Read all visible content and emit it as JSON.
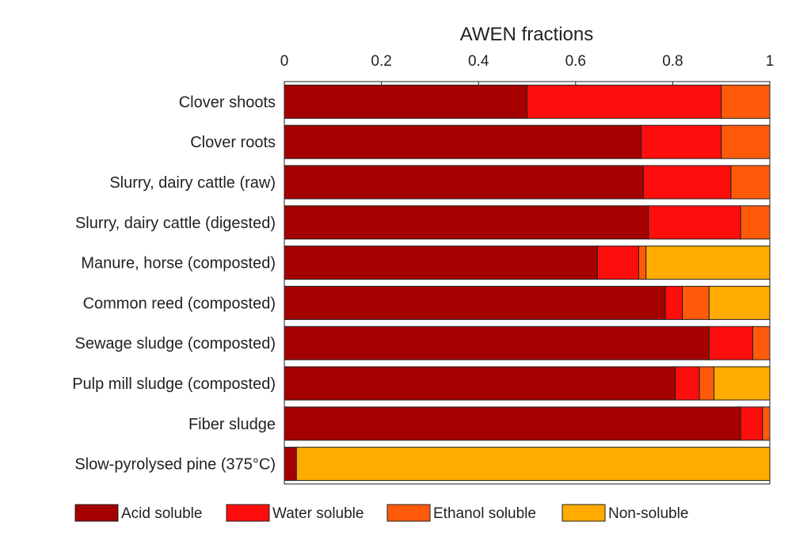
{
  "chart_data": {
    "type": "bar",
    "orientation": "horizontal",
    "stacked": true,
    "xlabel": "AWEN fractions",
    "xlabel_position": "top",
    "xlim": [
      0,
      1
    ],
    "xticks": [
      "0",
      "0.2",
      "0.4",
      "0.6",
      "0.8",
      "1"
    ],
    "xtick_values": [
      0,
      0.2,
      0.4,
      0.6,
      0.8,
      1
    ],
    "grid": false,
    "legend_position": "bottom",
    "categories": [
      "Clover shoots",
      "Clover roots",
      "Slurry, dairy cattle (raw)",
      "Slurry, dairy cattle (digested)",
      "Manure, horse (composted)",
      "Common reed (composted)",
      "Sewage sludge (composted)",
      "Pulp mill sludge (composted)",
      "Fiber sludge",
      "Slow-pyrolysed pine (375°C)"
    ],
    "series": [
      {
        "name": "Acid soluble",
        "color": "#a50000",
        "values": [
          0.5,
          0.735,
          0.74,
          0.75,
          0.645,
          0.785,
          0.875,
          0.805,
          0.94,
          0.025
        ]
      },
      {
        "name": "Water soluble",
        "color": "#ff0d0d",
        "values": [
          0.4,
          0.165,
          0.18,
          0.19,
          0.085,
          0.035,
          0.09,
          0.05,
          0.045,
          0.0
        ]
      },
      {
        "name": "Ethanol soluble",
        "color": "#ff5a0a",
        "values": [
          0.1,
          0.1,
          0.08,
          0.06,
          0.015,
          0.055,
          0.035,
          0.03,
          0.015,
          0.0
        ]
      },
      {
        "name": "Non-soluble",
        "color": "#ffab00",
        "values": [
          0.0,
          0.0,
          0.0,
          0.0,
          0.255,
          0.125,
          0.0,
          0.115,
          0.0,
          0.975
        ]
      }
    ]
  }
}
